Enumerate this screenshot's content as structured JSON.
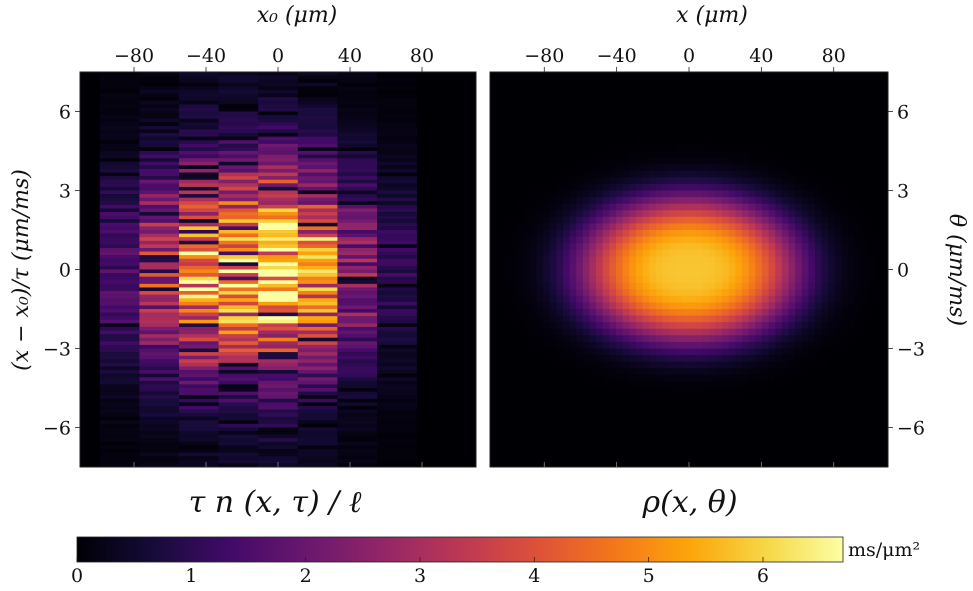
{
  "chart_data": [
    {
      "type": "heatmap",
      "panel": "left",
      "title": "τ n (x, τ) / ℓ",
      "xlabel": "x₀   (μm)",
      "ylabel": "(x − x₀)/τ   (μm/ms)",
      "xticks": [
        -80,
        -40,
        0,
        40,
        80
      ],
      "xtick_labels": [
        "−80",
        "−40",
        "0",
        "40",
        "80"
      ],
      "yticks": [
        6,
        3,
        0,
        -3,
        -6
      ],
      "ytick_labels": [
        "6",
        "3",
        "0",
        "−3",
        "−6"
      ],
      "xlim": [
        -110,
        110
      ],
      "ylim": [
        -7.5,
        7.5
      ],
      "x_bins": [
        -88,
        -66,
        -44,
        -22,
        0,
        22,
        44,
        66
      ],
      "x_bin_width": 22,
      "column_peak_values": [
        1.5,
        3.2,
        5.3,
        5.7,
        6.3,
        4.8,
        2.5,
        1.0
      ],
      "y_spread": 2.6,
      "description_of_values": "noisy histogram columns, brightest near x0≈0..20, y≈0"
    },
    {
      "type": "heatmap",
      "panel": "right",
      "title": "ρ(x, θ)",
      "xlabel": "x   (μm)",
      "ylabel": "θ   (μm/ms)",
      "xticks": [
        -80,
        -40,
        0,
        40,
        80
      ],
      "xtick_labels": [
        "−80",
        "−40",
        "0",
        "40",
        "80"
      ],
      "yticks": [
        6,
        3,
        0,
        -3,
        -6
      ],
      "ytick_labels": [
        "6",
        "3",
        "0",
        "−3",
        "−6"
      ],
      "xlim": [
        -110,
        110
      ],
      "ylim": [
        -7.5,
        7.5
      ],
      "peak_value": 5.8,
      "center": [
        0,
        0
      ],
      "x_spread": 70,
      "y_spread": 3.2
    }
  ],
  "colorbar": {
    "colormap": "inferno",
    "range": [
      0,
      6.7
    ],
    "ticks": [
      0,
      1,
      2,
      3,
      4,
      5,
      6
    ],
    "tick_labels": [
      "0",
      "1",
      "2",
      "3",
      "4",
      "5",
      "6"
    ],
    "unit": "ms/μm²"
  }
}
